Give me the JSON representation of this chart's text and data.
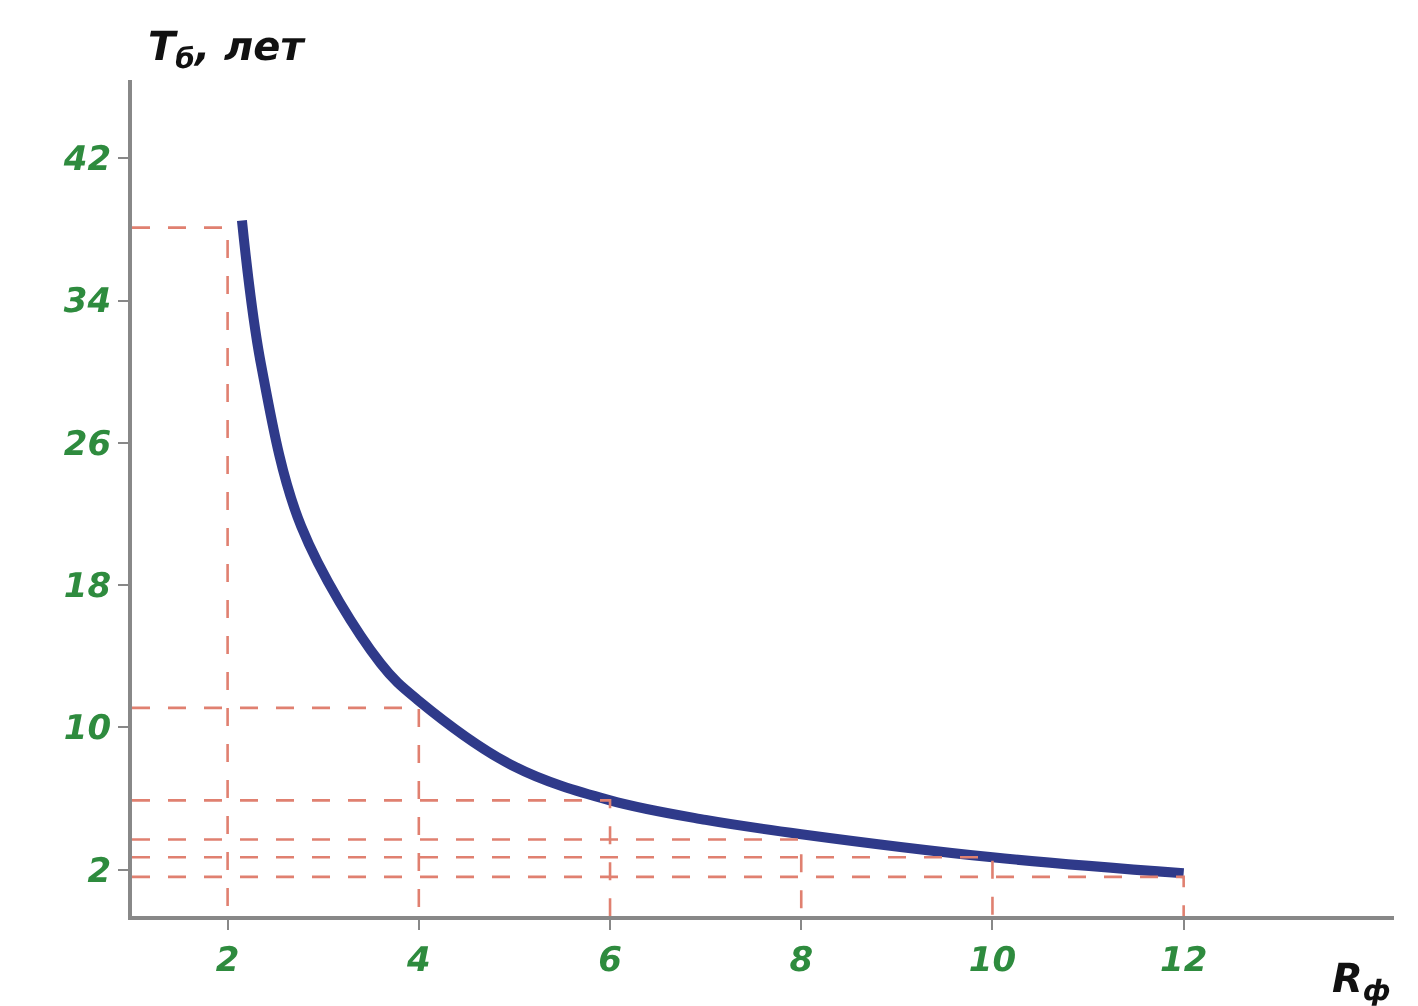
{
  "chart_data": {
    "type": "line",
    "xlabel": "R$_{ф}$",
    "ylabel": "T$_{б}$, лет",
    "xlim": [
      1,
      14.2
    ],
    "ylim": [
      -0.6,
      46.4
    ],
    "xticks": [
      2,
      4,
      6,
      8,
      10,
      12
    ],
    "yticks": [
      2,
      10,
      18,
      26,
      34,
      42
    ],
    "series": [
      {
        "color": "#2f3a8a",
        "x": [
          2.15,
          2.35,
          2.77,
          3.6,
          4,
          5,
          6,
          7,
          8,
          10,
          12
        ],
        "values": [
          38.5,
          30.4,
          21.3,
          13.6,
          11.5,
          7.8,
          5.9,
          4.8,
          4.0,
          2.7,
          1.8
        ]
      },
      {
        "line_style": "dashed",
        "color": "#e08070",
        "x": [
          1,
          2,
          2
        ],
        "values": [
          38.1,
          38.1,
          -0.6
        ]
      },
      {
        "line_style": "dashed",
        "color": "#e08070",
        "x": [
          1,
          4,
          4
        ],
        "values": [
          11.1,
          11.1,
          -0.6
        ]
      },
      {
        "line_style": "dashed",
        "color": "#e08070",
        "x": [
          1,
          6,
          6
        ],
        "values": [
          5.9,
          5.9,
          -0.6
        ]
      },
      {
        "line_style": "dashed",
        "color": "#e08070",
        "x": [
          1,
          8,
          8
        ],
        "values": [
          3.7,
          3.7,
          -0.6
        ]
      },
      {
        "line_style": "dashed",
        "color": "#e08070",
        "x": [
          1,
          10,
          10
        ],
        "values": [
          2.7,
          2.7,
          -0.6
        ]
      },
      {
        "line_style": "dashed",
        "color": "#e08070",
        "x": [
          1,
          12,
          12
        ],
        "values": [
          1.6,
          1.6,
          -0.6
        ]
      }
    ]
  }
}
